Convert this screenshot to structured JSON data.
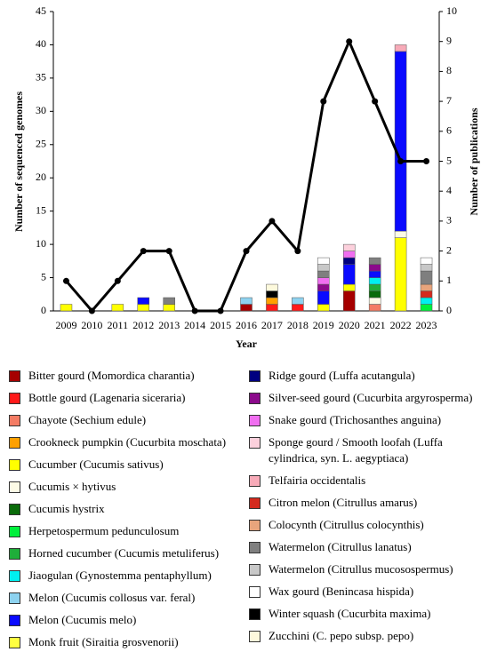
{
  "chart_data": {
    "type": "bar",
    "stacked": true,
    "categories": [
      "2009",
      "2010",
      "2011",
      "2012",
      "2013",
      "2014",
      "2015",
      "2016",
      "2017",
      "2018",
      "2019",
      "2020",
      "2021",
      "2022",
      "2023"
    ],
    "x_label": "Year",
    "y_label": "Number of sequenced genomes",
    "y2_label": "Number of publications",
    "ylim": [
      0,
      45
    ],
    "yticks": [
      0,
      5,
      10,
      15,
      20,
      25,
      30,
      35,
      40,
      45
    ],
    "y2lim": [
      0,
      10
    ],
    "y2ticks": [
      0,
      1,
      2,
      3,
      4,
      5,
      6,
      7,
      8,
      9,
      10
    ],
    "grid": false,
    "series": [
      {
        "name": "Bitter gourd (Momordica charantia)",
        "color": "#a50000",
        "values": [
          0,
          0,
          0,
          0,
          0,
          0,
          0,
          1,
          0,
          0,
          0,
          3,
          0,
          0,
          0
        ]
      },
      {
        "name": "Bottle gourd (Lagenaria siceraria)",
        "color": "#ff1a1a",
        "values": [
          0,
          0,
          0,
          0,
          0,
          0,
          0,
          0,
          1,
          1,
          0,
          0,
          0,
          0,
          0
        ]
      },
      {
        "name": "Chayote (Sechium edule)",
        "color": "#f47c64",
        "values": [
          0,
          0,
          0,
          0,
          0,
          0,
          0,
          0,
          0,
          0,
          0,
          0,
          1,
          0,
          0
        ]
      },
      {
        "name": "Crookneck pumpkin (Cucurbita moschata)",
        "color": "#ffa000",
        "values": [
          0,
          0,
          0,
          0,
          0,
          0,
          0,
          0,
          1,
          0,
          0,
          0,
          0,
          0,
          0
        ]
      },
      {
        "name": "Cucumber (Cucumis sativus)",
        "color": "#ffff00",
        "values": [
          1,
          0,
          1,
          1,
          1,
          0,
          0,
          0,
          0,
          0,
          1,
          1,
          0,
          11,
          0
        ]
      },
      {
        "name": "Cucumis × hytivus",
        "color": "#fdfbe6",
        "values": [
          0,
          0,
          0,
          0,
          0,
          0,
          0,
          0,
          0,
          0,
          0,
          0,
          1,
          1,
          0
        ]
      },
      {
        "name": "Cucumis hystrix",
        "color": "#0a6b0a",
        "values": [
          0,
          0,
          0,
          0,
          0,
          0,
          0,
          0,
          0,
          0,
          0,
          0,
          1,
          0,
          0
        ]
      },
      {
        "name": "Herpetospermum pedunculosum",
        "color": "#00f03c",
        "values": [
          0,
          0,
          0,
          0,
          0,
          0,
          0,
          0,
          0,
          0,
          0,
          0,
          0,
          0,
          1
        ]
      },
      {
        "name": "Horned cucumber (Cucumis metuliferus)",
        "color": "#1fae3a",
        "values": [
          0,
          0,
          0,
          0,
          0,
          0,
          0,
          0,
          0,
          0,
          0,
          0,
          1,
          0,
          0
        ]
      },
      {
        "name": "Jiaogulan (Gynostemma pentaphyllum)",
        "color": "#00f0f0",
        "values": [
          0,
          0,
          0,
          0,
          0,
          0,
          0,
          0,
          0,
          0,
          0,
          0,
          1,
          0,
          1
        ]
      },
      {
        "name": "Melon (Cucumis collosus var. feral)",
        "color": "#8dd2ef",
        "values": [
          0,
          0,
          0,
          0,
          0,
          0,
          0,
          1,
          0,
          1,
          0,
          0,
          0,
          0,
          0
        ]
      },
      {
        "name": "Melon (Cucumis melo)",
        "color": "#0a0aff",
        "values": [
          0,
          0,
          0,
          1,
          0,
          0,
          0,
          0,
          0,
          0,
          2,
          3,
          1,
          27,
          0
        ]
      },
      {
        "name": "Monk fruit (Siraitia grosvenorii)",
        "color": "#ffff40",
        "values": [
          0,
          0,
          0,
          0,
          0,
          0,
          0,
          0,
          0,
          0,
          0,
          0,
          0,
          0,
          0
        ]
      },
      {
        "name": "Ridge gourd (Luffa acutangula)",
        "color": "#000080",
        "values": [
          0,
          0,
          0,
          0,
          0,
          0,
          0,
          0,
          0,
          0,
          0,
          1,
          0,
          0,
          0
        ]
      },
      {
        "name": "Silver-seed gourd (Cucurbita argyrosperma)",
        "color": "#8b0a8b",
        "values": [
          0,
          0,
          0,
          0,
          0,
          0,
          0,
          0,
          0,
          0,
          1,
          0,
          1,
          0,
          0
        ]
      },
      {
        "name": "Snake gourd (Trichosanthes anguina)",
        "color": "#f06ef0",
        "values": [
          0,
          0,
          0,
          0,
          0,
          0,
          0,
          0,
          0,
          0,
          1,
          1,
          0,
          0,
          0
        ]
      },
      {
        "name": "Sponge gourd / Smooth loofah (Luffa cylindrica, syn. L. aegyptiaca)",
        "color": "#fcd0dc",
        "values": [
          0,
          0,
          0,
          0,
          0,
          0,
          0,
          0,
          0,
          0,
          0,
          1,
          0,
          0,
          0
        ]
      },
      {
        "name": "Telfairia occidentalis",
        "color": "#f7aab8",
        "values": [
          0,
          0,
          0,
          0,
          0,
          0,
          0,
          0,
          0,
          0,
          0,
          0,
          0,
          1,
          0
        ]
      },
      {
        "name": "Citron melon (Citrullus amarus)",
        "color": "#d42a1e",
        "values": [
          0,
          0,
          0,
          0,
          0,
          0,
          0,
          0,
          0,
          0,
          0,
          0,
          0,
          0,
          1
        ]
      },
      {
        "name": "Colocynth (Citrullus colocynthis)",
        "color": "#e8a47c",
        "values": [
          0,
          0,
          0,
          0,
          0,
          0,
          0,
          0,
          0,
          0,
          0,
          0,
          0,
          0,
          1
        ]
      },
      {
        "name": "Watermelon (Citrullus lanatus)",
        "color": "#7f7f7f",
        "values": [
          0,
          0,
          0,
          0,
          1,
          0,
          0,
          0,
          0,
          0,
          1,
          0,
          1,
          0,
          2
        ]
      },
      {
        "name": "Watermelon (Citrullus mucosospermus)",
        "color": "#c8c8c8",
        "values": [
          0,
          0,
          0,
          0,
          0,
          0,
          0,
          0,
          0,
          0,
          1,
          0,
          0,
          0,
          1
        ]
      },
      {
        "name": "Wax gourd (Benincasa hispida)",
        "color": "#ffffff",
        "values": [
          0,
          0,
          0,
          0,
          0,
          0,
          0,
          0,
          0,
          0,
          1,
          0,
          0,
          0,
          1
        ]
      },
      {
        "name": "Winter squash (Cucurbita maxima)",
        "color": "#000000",
        "values": [
          0,
          0,
          0,
          0,
          0,
          0,
          0,
          0,
          1,
          0,
          0,
          0,
          0,
          0,
          0
        ]
      },
      {
        "name": "Zucchini (C. pepo subsp. pepo)",
        "color": "#fdf9dc",
        "values": [
          0,
          0,
          0,
          0,
          0,
          0,
          0,
          0,
          1,
          0,
          0,
          0,
          0,
          0,
          0
        ]
      },
      {
        "type": "line",
        "axis": "y2",
        "color": "#000000",
        "values": [
          1,
          0,
          1,
          2,
          2,
          0,
          0,
          2,
          3,
          2,
          7,
          9,
          7,
          5,
          5
        ]
      }
    ]
  }
}
